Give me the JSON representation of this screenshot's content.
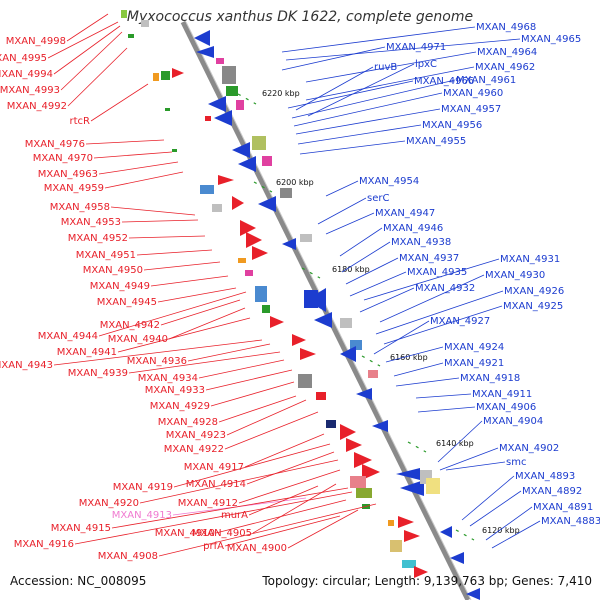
{
  "title": "Myxococcus xanthus DK 1622, complete genome",
  "accession": "Accession: NC_008095",
  "summary": "Topology: circular; Length: 9,139,763 bp; Genes: 7,410",
  "kbp_marks": [
    "6220 kbp",
    "6200 kbp",
    "6180 kbp",
    "6160 kbp",
    "6140 kbp",
    "6120 kbp"
  ],
  "left_labels": [
    {
      "text": "MXAN_4998",
      "color": "red"
    },
    {
      "text": "MXAN_4995",
      "color": "red"
    },
    {
      "text": "MXAN_4994",
      "color": "red"
    },
    {
      "text": "MXAN_4993",
      "color": "red"
    },
    {
      "text": "MXAN_4992",
      "color": "red"
    },
    {
      "text": "rtcR",
      "color": "red"
    },
    {
      "text": "MXAN_4976",
      "color": "red"
    },
    {
      "text": "MXAN_4970",
      "color": "red"
    },
    {
      "text": "MXAN_4963",
      "color": "red"
    },
    {
      "text": "MXAN_4959",
      "color": "red"
    },
    {
      "text": "MXAN_4958",
      "color": "red"
    },
    {
      "text": "MXAN_4953",
      "color": "red"
    },
    {
      "text": "MXAN_4952",
      "color": "red"
    },
    {
      "text": "MXAN_4951",
      "color": "red"
    },
    {
      "text": "MXAN_4950",
      "color": "red"
    },
    {
      "text": "MXAN_4949",
      "color": "red"
    },
    {
      "text": "MXAN_4945",
      "color": "red"
    },
    {
      "text": "MXAN_4942",
      "color": "red"
    },
    {
      "text": "MXAN_4944",
      "color": "red"
    },
    {
      "text": "MXAN_4940",
      "color": "red"
    },
    {
      "text": "MXAN_4941",
      "color": "red"
    },
    {
      "text": "MXAN_4943",
      "color": "red"
    },
    {
      "text": "MXAN_4936",
      "color": "red"
    },
    {
      "text": "MXAN_4939",
      "color": "red"
    },
    {
      "text": "MXAN_4934",
      "color": "red"
    },
    {
      "text": "MXAN_4933",
      "color": "red"
    },
    {
      "text": "MXAN_4929",
      "color": "red"
    },
    {
      "text": "MXAN_4928",
      "color": "red"
    },
    {
      "text": "MXAN_4923",
      "color": "red"
    },
    {
      "text": "MXAN_4922",
      "color": "red"
    },
    {
      "text": "MXAN_4917",
      "color": "red"
    },
    {
      "text": "MXAN_4919",
      "color": "red"
    },
    {
      "text": "MXAN_4914",
      "color": "red"
    },
    {
      "text": "MXAN_4920",
      "color": "red"
    },
    {
      "text": "MXAN_4912",
      "color": "red"
    },
    {
      "text": "MXAN_4913",
      "color": "pink"
    },
    {
      "text": "murA",
      "color": "red"
    },
    {
      "text": "MXAN_4915",
      "color": "red"
    },
    {
      "text": "MXAN_4910",
      "color": "red"
    },
    {
      "text": "MXAN_4905",
      "color": "red"
    },
    {
      "text": "MXAN_4916",
      "color": "red"
    },
    {
      "text": "prfA",
      "color": "red"
    },
    {
      "text": "MXAN_4900",
      "color": "red"
    },
    {
      "text": "MXAN_4908",
      "color": "red"
    }
  ],
  "right_labels": [
    {
      "text": "MXAN_4968"
    },
    {
      "text": "MXAN_4965"
    },
    {
      "text": "MXAN_4971"
    },
    {
      "text": "MXAN_4964"
    },
    {
      "text": "ruvB"
    },
    {
      "text": "lpxC"
    },
    {
      "text": "MXAN_4962"
    },
    {
      "text": "MXAN_4966"
    },
    {
      "text": "MXAN_4961"
    },
    {
      "text": "MXAN_4960"
    },
    {
      "text": "MXAN_4957"
    },
    {
      "text": "MXAN_4956"
    },
    {
      "text": "MXAN_4955"
    },
    {
      "text": "MXAN_4954"
    },
    {
      "text": "serC"
    },
    {
      "text": "MXAN_4947"
    },
    {
      "text": "MXAN_4946"
    },
    {
      "text": "MXAN_4938"
    },
    {
      "text": "MXAN_4937"
    },
    {
      "text": "MXAN_4931"
    },
    {
      "text": "MXAN_4935"
    },
    {
      "text": "MXAN_4930"
    },
    {
      "text": "MXAN_4932"
    },
    {
      "text": "MXAN_4926"
    },
    {
      "text": "MXAN_4925"
    },
    {
      "text": "MXAN_4927"
    },
    {
      "text": "MXAN_4924"
    },
    {
      "text": "MXAN_4921"
    },
    {
      "text": "MXAN_4918"
    },
    {
      "text": "MXAN_4911"
    },
    {
      "text": "MXAN_4906"
    },
    {
      "text": "MXAN_4904"
    },
    {
      "text": "MXAN_4902"
    },
    {
      "text": "smc"
    },
    {
      "text": "MXAN_4893"
    },
    {
      "text": "MXAN_4892"
    },
    {
      "text": "MXAN_4891"
    },
    {
      "text": "MXAN_4883"
    }
  ],
  "colors": {
    "forward": "#e8202a",
    "reverse": "#1c3ccf",
    "backbone": "#8a8a8a",
    "tick": "#2a9a2a",
    "pink_label": "#f07ad0"
  }
}
